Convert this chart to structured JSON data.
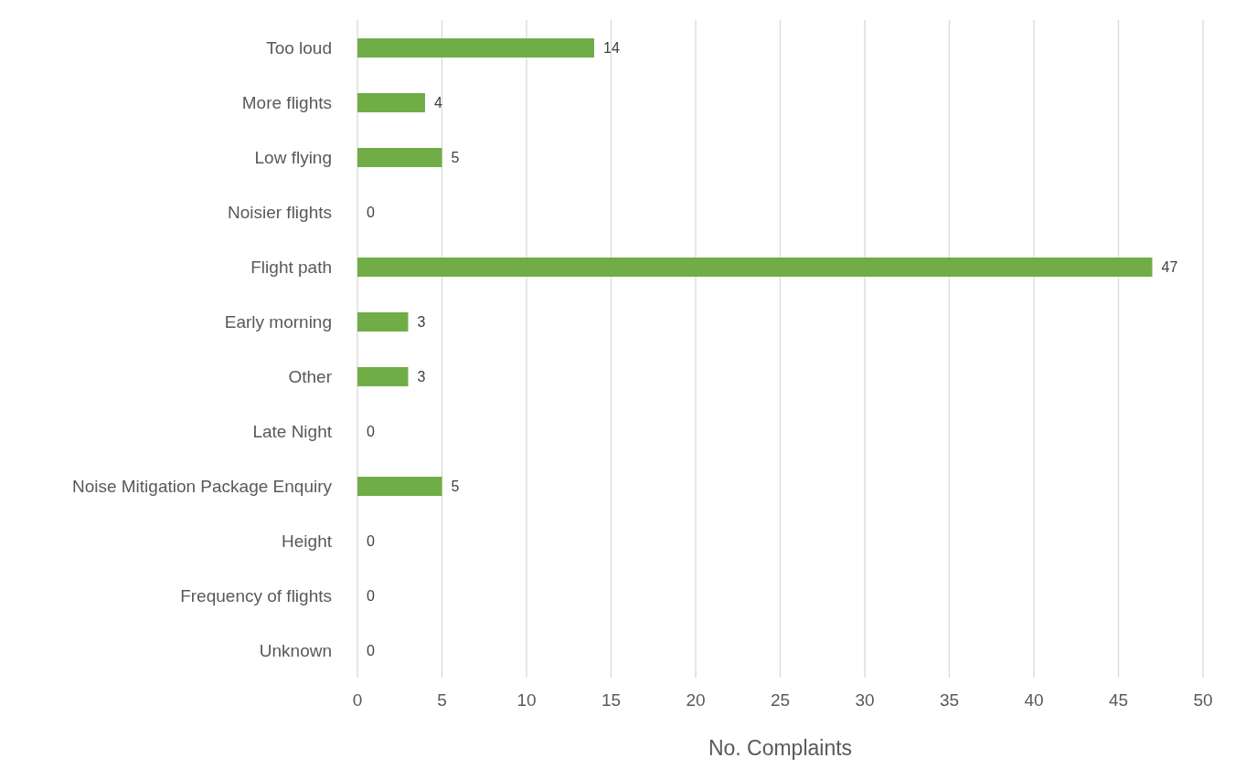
{
  "chart_data": {
    "type": "bar",
    "orientation": "horizontal",
    "xlabel": "No. Complaints",
    "categories": [
      "Too loud",
      "More flights",
      "Low flying",
      "Noisier flights",
      "Flight path",
      "Early morning",
      "Other",
      "Late Night",
      "Noise Mitigation Package Enquiry",
      "Height",
      "Frequency of flights",
      "Unknown"
    ],
    "values": [
      14,
      4,
      5,
      0,
      47,
      3,
      3,
      0,
      5,
      0,
      0,
      0
    ],
    "color": "#70ad47",
    "xlim": [
      0,
      50
    ],
    "xticks": [
      0,
      5,
      10,
      15,
      20,
      25,
      30,
      35,
      40,
      45,
      50
    ],
    "grid": "x",
    "data_labels": true
  }
}
